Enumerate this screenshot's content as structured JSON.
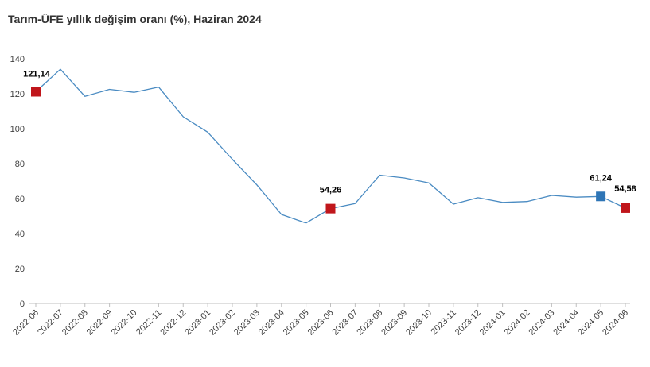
{
  "chart_data": {
    "type": "line",
    "title": "Tarım-ÜFE yıllık değişim oranı (%), Haziran 2024",
    "xlabel": "",
    "ylabel": "",
    "ylim": [
      0,
      140
    ],
    "yticks": [
      "0",
      "20",
      "40",
      "60",
      "80",
      "100",
      "120",
      "140"
    ],
    "grid": false,
    "categories": [
      "2022-06",
      "2022-07",
      "2022-08",
      "2022-09",
      "2022-10",
      "2022-11",
      "2022-12",
      "2023-01",
      "2023-02",
      "2023-03",
      "2023-04",
      "2023-05",
      "2023-06",
      "2023-07",
      "2023-08",
      "2023-09",
      "2023-10",
      "2023-11",
      "2023-12",
      "2024-01",
      "2024-02",
      "2024-03",
      "2024-04",
      "2024-05",
      "2024-06"
    ],
    "series": [
      {
        "values": [
          121.14,
          134.0,
          118.5,
          122.5,
          120.8,
          123.8,
          106.8,
          98.0,
          82.5,
          67.8,
          50.9,
          46.0,
          54.26,
          57.2,
          73.4,
          71.8,
          69.0,
          56.8,
          60.5,
          57.8,
          58.3,
          61.8,
          60.8,
          61.24,
          54.58
        ],
        "color": "#4a8bc2"
      }
    ],
    "highlighted_points": [
      {
        "index": 0,
        "label": "121,14",
        "color": "#c0161b"
      },
      {
        "index": 12,
        "label": "54,26",
        "color": "#c0161b"
      },
      {
        "index": 23,
        "label": "61,24",
        "color": "#2e75b6"
      },
      {
        "index": 24,
        "label": "54,58",
        "color": "#c0161b"
      }
    ]
  }
}
